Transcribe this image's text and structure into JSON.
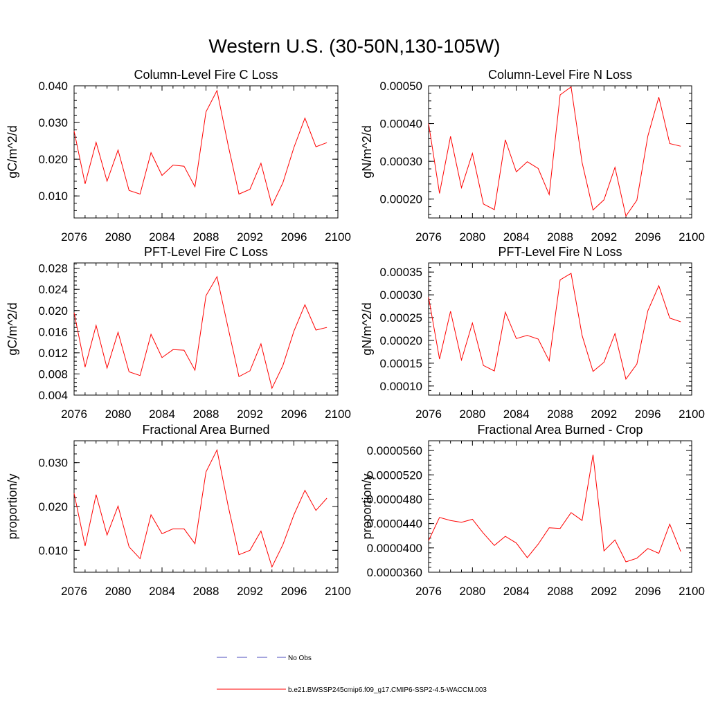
{
  "main_title": "Western U.S. (30-50N,130-105W)",
  "colors": {
    "model_line": "#ff0000",
    "obs_line": "#4b4bbd",
    "axis": "#000000"
  },
  "legend": {
    "obs_label": "No Obs",
    "model_label": "b.e21.BWSSP245cmip6.f09_g17.CMIP6-SSP2-4.5-WACCM.003"
  },
  "chart_data": [
    {
      "type": "line",
      "title": "Column-Level Fire C Loss",
      "ylabel": "gC/m^2/d",
      "xlim": [
        2076,
        2100
      ],
      "ylim": [
        0.004,
        0.04
      ],
      "x_ticks": [
        "2076",
        "2080",
        "2084",
        "2088",
        "2092",
        "2096",
        "2100"
      ],
      "y_ticks": [
        {
          "value": 0.01,
          "label": "0.010"
        },
        {
          "value": 0.02,
          "label": "0.020"
        },
        {
          "value": 0.03,
          "label": "0.030"
        },
        {
          "value": 0.04,
          "label": "0.040"
        }
      ],
      "x": [
        2076,
        2077,
        2078,
        2079,
        2080,
        2081,
        2082,
        2083,
        2084,
        2085,
        2086,
        2087,
        2088,
        2089,
        2090,
        2091,
        2092,
        2093,
        2094,
        2095,
        2096,
        2097,
        2098,
        2099
      ],
      "series": [
        {
          "values": [
            0.0277,
            0.0133,
            0.0246,
            0.014,
            0.0225,
            0.0115,
            0.0105,
            0.0218,
            0.0156,
            0.0184,
            0.0181,
            0.0125,
            0.0329,
            0.0387,
            0.024,
            0.0105,
            0.0118,
            0.0189,
            0.0074,
            0.0136,
            0.0232,
            0.0312,
            0.0234,
            0.0245
          ]
        }
      ]
    },
    {
      "type": "line",
      "title": "Column-Level Fire N Loss",
      "ylabel": "gN/m^2/d",
      "xlim": [
        2076,
        2100
      ],
      "ylim": [
        0.00015,
        0.0005
      ],
      "x_ticks": [
        "2076",
        "2080",
        "2084",
        "2088",
        "2092",
        "2096",
        "2100"
      ],
      "y_ticks": [
        {
          "value": 0.0002,
          "label": "0.00020"
        },
        {
          "value": 0.0003,
          "label": "0.00030"
        },
        {
          "value": 0.0004,
          "label": "0.00040"
        },
        {
          "value": 0.0005,
          "label": "0.00050"
        }
      ],
      "x": [
        2076,
        2077,
        2078,
        2079,
        2080,
        2081,
        2082,
        2083,
        2084,
        2085,
        2086,
        2087,
        2088,
        2089,
        2090,
        2091,
        2092,
        2093,
        2094,
        2095,
        2096,
        2097,
        2098,
        2099
      ],
      "series": [
        {
          "values": [
            0.0004,
            0.000215,
            0.000366,
            0.00023,
            0.000321,
            0.000187,
            0.000172,
            0.000357,
            0.000272,
            0.000299,
            0.000281,
            0.000212,
            0.000476,
            0.000497,
            0.000297,
            0.000171,
            0.000198,
            0.000284,
            0.000155,
            0.000197,
            0.000367,
            0.00047,
            0.000347,
            0.00034
          ]
        }
      ]
    },
    {
      "type": "line",
      "title": "PFT-Level Fire C Loss",
      "ylabel": "gC/m^2/d",
      "xlim": [
        2076,
        2100
      ],
      "ylim": [
        0.004,
        0.029
      ],
      "x_ticks": [
        "2076",
        "2080",
        "2084",
        "2088",
        "2092",
        "2096",
        "2100"
      ],
      "y_ticks": [
        {
          "value": 0.004,
          "label": "0.004"
        },
        {
          "value": 0.008,
          "label": "0.008"
        },
        {
          "value": 0.012,
          "label": "0.012"
        },
        {
          "value": 0.016,
          "label": "0.016"
        },
        {
          "value": 0.02,
          "label": "0.020"
        },
        {
          "value": 0.024,
          "label": "0.024"
        },
        {
          "value": 0.028,
          "label": "0.028"
        }
      ],
      "x": [
        2076,
        2077,
        2078,
        2079,
        2080,
        2081,
        2082,
        2083,
        2084,
        2085,
        2086,
        2087,
        2088,
        2089,
        2090,
        2091,
        2092,
        2093,
        2094,
        2095,
        2096,
        2097,
        2098,
        2099
      ],
      "series": [
        {
          "values": [
            0.0196,
            0.0093,
            0.0172,
            0.0091,
            0.0159,
            0.0084,
            0.0077,
            0.0155,
            0.0111,
            0.0126,
            0.0125,
            0.0087,
            0.0228,
            0.0264,
            0.0168,
            0.0075,
            0.0086,
            0.0137,
            0.0053,
            0.0096,
            0.0161,
            0.0211,
            0.0163,
            0.0168
          ]
        }
      ]
    },
    {
      "type": "line",
      "title": "PFT-Level Fire N Loss",
      "ylabel": "gN/m^2/d",
      "xlim": [
        2076,
        2100
      ],
      "ylim": [
        8e-05,
        0.00037
      ],
      "x_ticks": [
        "2076",
        "2080",
        "2084",
        "2088",
        "2092",
        "2096",
        "2100"
      ],
      "y_ticks": [
        {
          "value": 0.0001,
          "label": "0.00010"
        },
        {
          "value": 0.00015,
          "label": "0.00015"
        },
        {
          "value": 0.0002,
          "label": "0.00020"
        },
        {
          "value": 0.00025,
          "label": "0.00025"
        },
        {
          "value": 0.0003,
          "label": "0.00030"
        },
        {
          "value": 0.00035,
          "label": "0.00035"
        }
      ],
      "x": [
        2076,
        2077,
        2078,
        2079,
        2080,
        2081,
        2082,
        2083,
        2084,
        2085,
        2086,
        2087,
        2088,
        2089,
        2090,
        2091,
        2092,
        2093,
        2094,
        2095,
        2096,
        2097,
        2098,
        2099
      ],
      "series": [
        {
          "values": [
            0.000295,
            0.000159,
            0.000264,
            0.000157,
            0.000238,
            0.000145,
            0.000133,
            0.000262,
            0.000204,
            0.000211,
            0.000203,
            0.000155,
            0.000333,
            0.000347,
            0.000211,
            0.000132,
            0.000152,
            0.000215,
            0.000115,
            0.000148,
            0.000265,
            0.00032,
            0.000249,
            0.000241
          ]
        }
      ]
    },
    {
      "type": "line",
      "title": "Fractional Area Burned",
      "ylabel": "proportion/y",
      "xlim": [
        2076,
        2100
      ],
      "ylim": [
        0.005,
        0.035
      ],
      "x_ticks": [
        "2076",
        "2080",
        "2084",
        "2088",
        "2092",
        "2096",
        "2100"
      ],
      "y_ticks": [
        {
          "value": 0.01,
          "label": "0.010"
        },
        {
          "value": 0.02,
          "label": "0.020"
        },
        {
          "value": 0.03,
          "label": "0.030"
        }
      ],
      "x": [
        2076,
        2077,
        2078,
        2079,
        2080,
        2081,
        2082,
        2083,
        2084,
        2085,
        2086,
        2087,
        2088,
        2089,
        2090,
        2091,
        2092,
        2093,
        2094,
        2095,
        2096,
        2097,
        2098,
        2099
      ],
      "series": [
        {
          "values": [
            0.023,
            0.011,
            0.0227,
            0.0135,
            0.0201,
            0.0108,
            0.0081,
            0.0181,
            0.0138,
            0.0149,
            0.0149,
            0.0115,
            0.0279,
            0.0329,
            0.0203,
            0.009,
            0.01,
            0.0144,
            0.0062,
            0.0113,
            0.0181,
            0.0237,
            0.0191,
            0.0219
          ]
        }
      ]
    },
    {
      "type": "line",
      "title": "Fractional Area Burned - Crop",
      "ylabel": "proportion/y",
      "xlim": [
        2076,
        2100
      ],
      "ylim": [
        3.6e-05,
        5.76e-05
      ],
      "x_ticks": [
        "2076",
        "2080",
        "2084",
        "2088",
        "2092",
        "2096",
        "2100"
      ],
      "y_ticks": [
        {
          "value": 3.6e-05,
          "label": "0.0000360"
        },
        {
          "value": 4e-05,
          "label": "0.0000400"
        },
        {
          "value": 4.4e-05,
          "label": "0.0000440"
        },
        {
          "value": 4.8e-05,
          "label": "0.0000480"
        },
        {
          "value": 5.2e-05,
          "label": "0.0000520"
        },
        {
          "value": 5.6e-05,
          "label": "0.0000560"
        }
      ],
      "x": [
        2076,
        2077,
        2078,
        2079,
        2080,
        2081,
        2082,
        2083,
        2084,
        2085,
        2086,
        2087,
        2088,
        2089,
        2090,
        2091,
        2092,
        2093,
        2094,
        2095,
        2096,
        2097,
        2098,
        2099
      ],
      "series": [
        {
          "values": [
            4.12e-05,
            4.5e-05,
            4.45e-05,
            4.42e-05,
            4.47e-05,
            4.24e-05,
            4.04e-05,
            4.19e-05,
            4.08e-05,
            3.84e-05,
            4.06e-05,
            4.33e-05,
            4.32e-05,
            4.58e-05,
            4.45e-05,
            5.53e-05,
            3.95e-05,
            4.13e-05,
            3.77e-05,
            3.83e-05,
            3.99e-05,
            3.91e-05,
            4.39e-05,
            3.94e-05
          ]
        }
      ]
    }
  ]
}
